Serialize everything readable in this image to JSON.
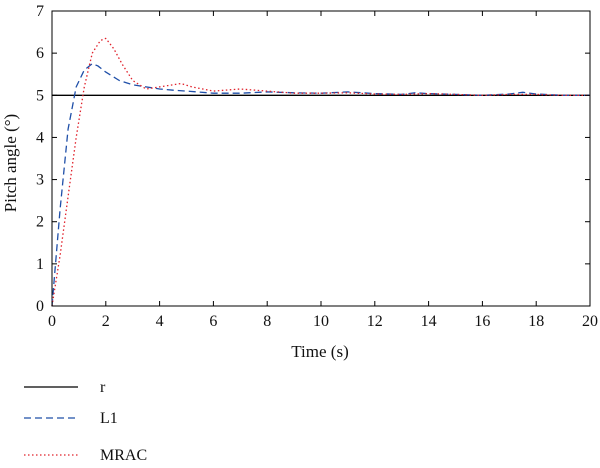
{
  "chart_data": {
    "type": "line",
    "xlabel": "Time (s)",
    "ylabel": "Pitch angle (°)",
    "xlim": [
      0,
      20
    ],
    "ylim": [
      0,
      7
    ],
    "xticks": [
      "0",
      "2",
      "4",
      "6",
      "8",
      "10",
      "12",
      "14",
      "16",
      "18",
      "20"
    ],
    "yticks": [
      "0",
      "1",
      "2",
      "3",
      "4",
      "5",
      "6",
      "7"
    ],
    "grid": false,
    "legend_position": "below plot, left",
    "series": [
      {
        "name": "r",
        "color": "#000000",
        "style": "solid",
        "x": [
          0,
          20
        ],
        "y": [
          5,
          5
        ]
      },
      {
        "name": "L1",
        "color": "#1f4fa8",
        "style": "dashed",
        "x": [
          0,
          0.3,
          0.6,
          0.9,
          1.2,
          1.5,
          1.7,
          2.0,
          2.5,
          3.0,
          3.5,
          4.0,
          4.5,
          5.0,
          6.0,
          7.0,
          8.0,
          9.0,
          10.0,
          11.0,
          12.0,
          13.0,
          13.5,
          14.0,
          15.0,
          16.0,
          17.0,
          17.5,
          18.0,
          19.0,
          20.0
        ],
        "y": [
          0,
          2.3,
          4.2,
          5.2,
          5.6,
          5.75,
          5.7,
          5.55,
          5.35,
          5.25,
          5.2,
          5.15,
          5.12,
          5.1,
          5.05,
          5.05,
          5.08,
          5.06,
          5.05,
          5.08,
          5.04,
          5.02,
          5.06,
          5.04,
          5.02,
          5.0,
          5.03,
          5.07,
          5.03,
          5.0,
          5.0
        ]
      },
      {
        "name": "MRAC",
        "color": "#e0202a",
        "style": "dotted",
        "x": [
          0,
          0.3,
          0.6,
          0.9,
          1.2,
          1.5,
          1.8,
          2.0,
          2.3,
          2.6,
          3.0,
          3.5,
          4.0,
          4.5,
          4.8,
          5.2,
          6.0,
          7.0,
          8.0,
          9.0,
          10.0,
          11.0,
          12.0,
          13.0,
          14.0,
          15.0,
          16.0,
          17.0,
          18.0,
          19.0,
          20.0
        ],
        "y": [
          0,
          1.2,
          2.6,
          4.0,
          5.2,
          6.0,
          6.3,
          6.35,
          6.1,
          5.75,
          5.35,
          5.15,
          5.2,
          5.25,
          5.28,
          5.2,
          5.1,
          5.15,
          5.1,
          5.05,
          5.05,
          5.06,
          5.03,
          5.02,
          5.04,
          5.02,
          5.0,
          5.02,
          5.02,
          5.0,
          5.0
        ]
      }
    ]
  }
}
